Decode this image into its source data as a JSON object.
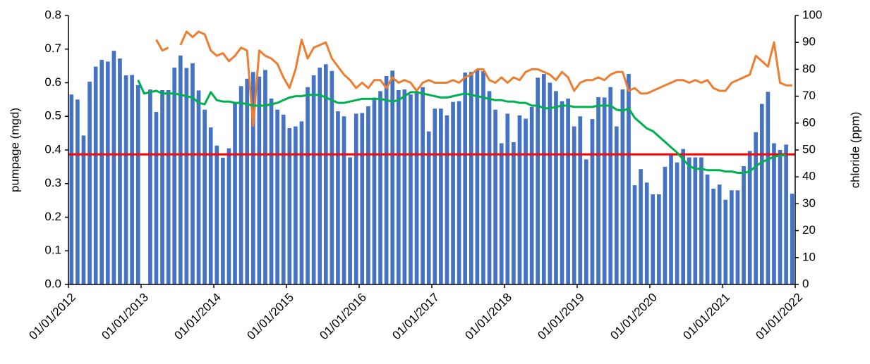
{
  "chart_data": {
    "type": "bar-line",
    "ylabel": "pumpage (mgd)",
    "y2label": "chloride (ppm)",
    "x": [
      "01/01/2012",
      "02/01/2012",
      "03/01/2012",
      "04/01/2012",
      "05/01/2012",
      "06/01/2012",
      "07/01/2012",
      "08/01/2012",
      "09/01/2012",
      "10/01/2012",
      "11/01/2012",
      "12/01/2012",
      "01/01/2013",
      "02/01/2013",
      "03/01/2013",
      "04/01/2013",
      "05/01/2013",
      "06/01/2013",
      "07/01/2013",
      "08/01/2013",
      "09/01/2013",
      "10/01/2013",
      "11/01/2013",
      "12/01/2013",
      "01/01/2014",
      "02/01/2014",
      "03/01/2014",
      "04/01/2014",
      "05/01/2014",
      "06/01/2014",
      "07/01/2014",
      "08/01/2014",
      "09/01/2014",
      "10/01/2014",
      "11/01/2014",
      "12/01/2014",
      "01/01/2015",
      "02/01/2015",
      "03/01/2015",
      "04/01/2015",
      "05/01/2015",
      "06/01/2015",
      "07/01/2015",
      "08/01/2015",
      "09/01/2015",
      "10/01/2015",
      "11/01/2015",
      "12/01/2015",
      "01/01/2016",
      "02/01/2016",
      "03/01/2016",
      "04/01/2016",
      "05/01/2016",
      "06/01/2016",
      "07/01/2016",
      "08/01/2016",
      "09/01/2016",
      "10/01/2016",
      "11/01/2016",
      "12/01/2016",
      "01/01/2017",
      "02/01/2017",
      "03/01/2017",
      "04/01/2017",
      "05/01/2017",
      "06/01/2017",
      "07/01/2017",
      "08/01/2017",
      "09/01/2017",
      "10/01/2017",
      "11/01/2017",
      "12/01/2017",
      "01/01/2018",
      "02/01/2018",
      "03/01/2018",
      "04/01/2018",
      "05/01/2018",
      "06/01/2018",
      "07/01/2018",
      "08/01/2018",
      "09/01/2018",
      "10/01/2018",
      "11/01/2018",
      "12/01/2018",
      "01/01/2019",
      "02/01/2019",
      "03/01/2019",
      "04/01/2019",
      "05/01/2019",
      "06/01/2019",
      "07/01/2019",
      "08/01/2019",
      "09/01/2019",
      "10/01/2019",
      "11/01/2019",
      "12/01/2019",
      "01/01/2020",
      "02/01/2020",
      "03/01/2020",
      "04/01/2020",
      "05/01/2020",
      "06/01/2020",
      "07/01/2020",
      "08/01/2020",
      "09/01/2020",
      "10/01/2020",
      "11/01/2020",
      "12/01/2020",
      "01/01/2021",
      "02/01/2021",
      "03/01/2021",
      "04/01/2021",
      "05/01/2021",
      "06/01/2021",
      "07/01/2021",
      "08/01/2021",
      "09/01/2021",
      "10/01/2021",
      "11/01/2021",
      "12/01/2021"
    ],
    "series": [
      {
        "type": "bar",
        "color": "#4472c4",
        "values": [
          0.565,
          0.55,
          0.443,
          0.603,
          0.648,
          0.668,
          0.663,
          0.695,
          0.672,
          0.622,
          0.623,
          0.593,
          null,
          0.58,
          0.513,
          0.578,
          0.578,
          0.645,
          0.681,
          0.644,
          0.658,
          0.577,
          0.52,
          0.467,
          0.413,
          0.377,
          0.405,
          0.54,
          0.59,
          0.612,
          0.632,
          0.618,
          0.638,
          0.553,
          0.52,
          0.505,
          0.465,
          0.47,
          0.485,
          0.587,
          0.622,
          0.645,
          0.655,
          0.635,
          0.515,
          0.5,
          0.378,
          0.508,
          0.51,
          0.53,
          0.556,
          0.575,
          0.62,
          0.636,
          0.578,
          0.58,
          0.565,
          0.575,
          0.587,
          0.455,
          0.523,
          0.523,
          0.503,
          0.543,
          0.545,
          0.63,
          0.632,
          0.64,
          0.634,
          0.575,
          0.52,
          0.42,
          0.508,
          0.423,
          0.503,
          0.493,
          0.528,
          0.615,
          0.626,
          0.6,
          0.575,
          0.545,
          0.553,
          0.47,
          0.5,
          0.372,
          0.492,
          0.557,
          0.556,
          0.587,
          0.47,
          0.58,
          0.626,
          0.295,
          0.343,
          0.303,
          0.268,
          0.268,
          0.35,
          0.39,
          0.363,
          0.403,
          0.378,
          0.378,
          0.378,
          0.327,
          0.285,
          0.297,
          0.252,
          0.28,
          0.28,
          0.352,
          0.397,
          0.453,
          0.537,
          0.573,
          0.42,
          0.4,
          0.416,
          0.27
        ]
      },
      {
        "type": "line",
        "axis": "y2",
        "color": "#ed7d31",
        "values": [
          null,
          null,
          null,
          null,
          null,
          null,
          null,
          null,
          null,
          null,
          null,
          null,
          null,
          null,
          91,
          87,
          88,
          null,
          89,
          94,
          92,
          94,
          93,
          87,
          85,
          86,
          83,
          85,
          88,
          87,
          59,
          87,
          85,
          84,
          82,
          77,
          73,
          80,
          91,
          84,
          88,
          89,
          90,
          84,
          81,
          78,
          76,
          73,
          75,
          73,
          76,
          76,
          73,
          77,
          75,
          76,
          75,
          72,
          75,
          76,
          75,
          75,
          75,
          76,
          75,
          77,
          78,
          80,
          80,
          76,
          75,
          77,
          75,
          77,
          76,
          79,
          80,
          80,
          79,
          78,
          76,
          79,
          77,
          72,
          75,
          76,
          76,
          77,
          76,
          78,
          79,
          79,
          72,
          73,
          71,
          71,
          72,
          73,
          74,
          75,
          76,
          76,
          75,
          76,
          75,
          76,
          73,
          72,
          72,
          75,
          76,
          77,
          78,
          85,
          83,
          81,
          90,
          75,
          74,
          74
        ]
      },
      {
        "type": "line",
        "axis": "y2",
        "color": "#00b050",
        "values": [
          null,
          null,
          null,
          null,
          null,
          null,
          null,
          null,
          null,
          null,
          null,
          76,
          71,
          71.5,
          72,
          71,
          71,
          71,
          70.5,
          70,
          69.5,
          67.5,
          67,
          71.5,
          68.5,
          68,
          68,
          67.5,
          67.5,
          67,
          66.5,
          66.5,
          66.5,
          67,
          67.5,
          68.5,
          69.5,
          70,
          70,
          70.5,
          70.5,
          70.5,
          69.5,
          68.5,
          67.5,
          67.5,
          68,
          68.5,
          69,
          69,
          69,
          69,
          68.5,
          68,
          68.5,
          70,
          71.5,
          71.5,
          71,
          70.5,
          70,
          69.5,
          69.5,
          70,
          70.5,
          71,
          70.5,
          70,
          69.5,
          69,
          68.5,
          68.5,
          68,
          68,
          67.5,
          67.5,
          66.5,
          66.5,
          65.5,
          65.5,
          66,
          66.5,
          66.5,
          66,
          66,
          66,
          66,
          66.5,
          66.5,
          66.5,
          65,
          64.5,
          65.5,
          62,
          60,
          58,
          57,
          55,
          53,
          51,
          49,
          46.5,
          44,
          43,
          43,
          42.5,
          42.5,
          42.5,
          42,
          42,
          41.5,
          41.5,
          42,
          44,
          45.5,
          46.5,
          47.5,
          48,
          48,
          null
        ]
      }
    ],
    "hline": {
      "value": 0.387,
      "color": "#ff0000"
    },
    "xlim": [
      "01/01/2012",
      "01/01/2022"
    ],
    "xticks": [
      "01/01/2012",
      "01/01/2013",
      "01/01/2014",
      "01/01/2015",
      "01/01/2016",
      "01/01/2017",
      "01/01/2018",
      "01/01/2019",
      "01/01/2020",
      "01/01/2021",
      "01/01/2022"
    ],
    "ylim": [
      0,
      0.8
    ],
    "yticks": [
      {
        "value": 0,
        "label": "0.0"
      },
      {
        "value": 0.1,
        "label": "0.1"
      },
      {
        "value": 0.2,
        "label": "0.2"
      },
      {
        "value": 0.3,
        "label": "0.3"
      },
      {
        "value": 0.4,
        "label": "0.4"
      },
      {
        "value": 0.5,
        "label": "0.5"
      },
      {
        "value": 0.6,
        "label": "0.6"
      },
      {
        "value": 0.7,
        "label": "0.7"
      },
      {
        "value": 0.8,
        "label": "0.8"
      }
    ],
    "y2lim": [
      0,
      100
    ],
    "y2ticks": [
      0,
      10,
      20,
      30,
      40,
      50,
      60,
      70,
      80,
      90,
      100
    ]
  }
}
